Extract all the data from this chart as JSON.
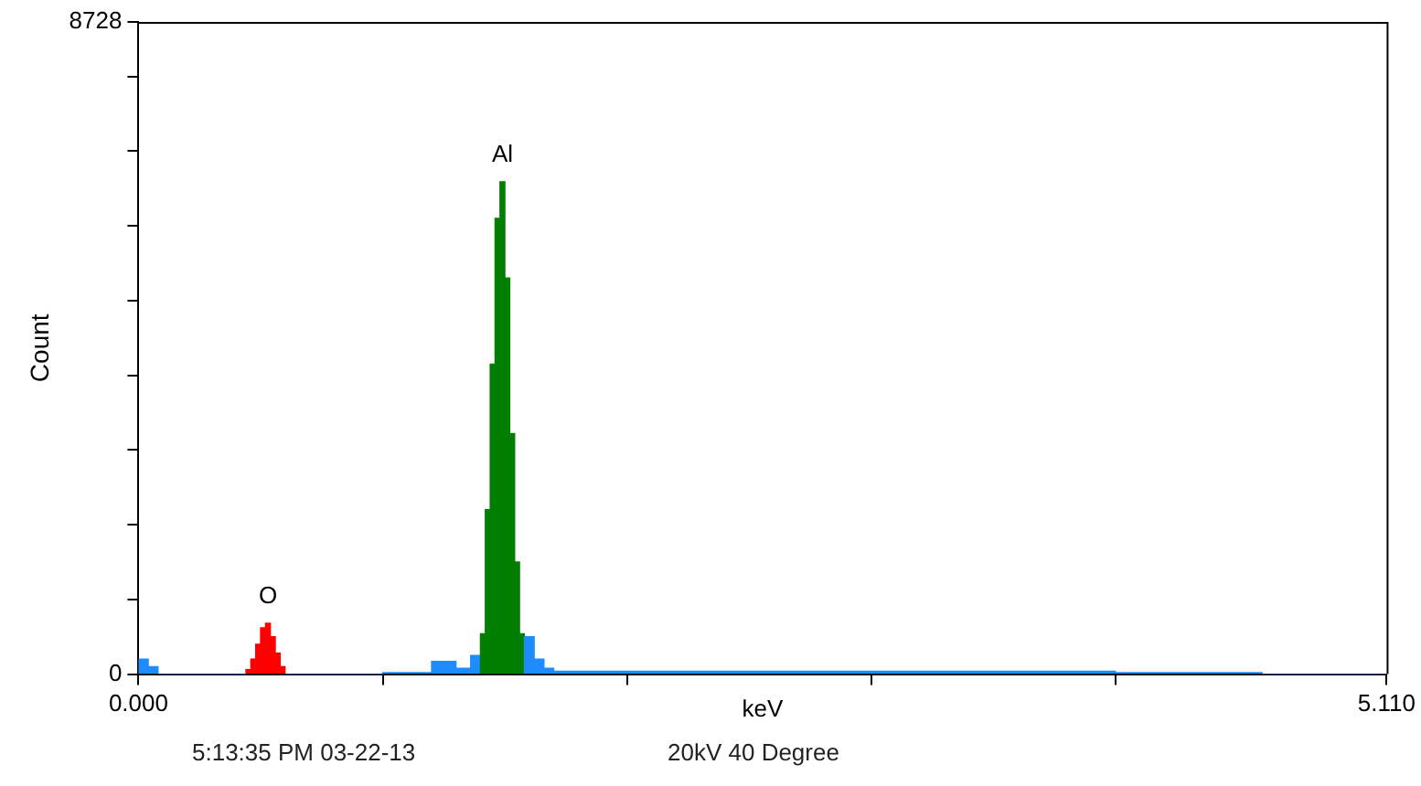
{
  "chart_data": {
    "type": "histogram",
    "xlabel": "keV",
    "ylabel": "Count",
    "bins": [
      0,
      0.04,
      0.08,
      0.44,
      0.46,
      0.48,
      0.5,
      0.52,
      0.54,
      0.56,
      0.58,
      0.6,
      1.0,
      1.2,
      1.3,
      1.36,
      1.4,
      1.42,
      1.44,
      1.46,
      1.48,
      1.5,
      1.52,
      1.54,
      1.56,
      1.58,
      1.62,
      1.66,
      1.7,
      4.0,
      4.6,
      5.11
    ],
    "values": [
      200,
      100,
      0,
      60,
      200,
      400,
      620,
      680,
      500,
      280,
      100,
      0,
      20,
      170,
      80,
      250,
      540,
      2200,
      4150,
      6100,
      6590,
      5300,
      3220,
      1500,
      540,
      500,
      200,
      80,
      40,
      20,
      0
    ],
    "colors": [
      "#1e8cff",
      "#1e8cff",
      "#1e8cff",
      "#ff0000",
      "#ff0000",
      "#ff0000",
      "#ff0000",
      "#ff0000",
      "#ff0000",
      "#ff0000",
      "#ff0000",
      "#1e8cff",
      "#1e8cff",
      "#1e8cff",
      "#1e8cff",
      "#1e8cff",
      "#007f00",
      "#007f00",
      "#007f00",
      "#007f00",
      "#007f00",
      "#007f00",
      "#007f00",
      "#007f00",
      "#007f00",
      "#1e8cff",
      "#1e8cff",
      "#1e8cff",
      "#1e8cff",
      "#1e8cff",
      "#1e8cff"
    ],
    "xlim": [
      0,
      5.11
    ],
    "xticks": [
      {
        "value": 0,
        "label": "0.000"
      },
      {
        "value": 1,
        "label": null
      },
      {
        "value": 2,
        "label": null
      },
      {
        "value": 3,
        "label": null
      },
      {
        "value": 4,
        "label": null
      },
      {
        "value": 5.11,
        "label": "5.110"
      }
    ],
    "ylim": [
      0,
      8728
    ],
    "yticks": [
      0,
      {
        "value": 1000,
        "label": null
      },
      {
        "value": 2000,
        "label": null
      },
      {
        "value": 3000,
        "label": null
      },
      {
        "value": 4000,
        "label": null
      },
      {
        "value": 5000,
        "label": null
      },
      {
        "value": 6000,
        "label": null
      },
      {
        "value": 7000,
        "label": null
      },
      {
        "value": 8000,
        "label": null
      },
      8728
    ],
    "grid": false,
    "legend": false,
    "annotations": [
      {
        "text": "O",
        "x": 0.53,
        "y": 680
      },
      {
        "text": "Al",
        "x": 1.49,
        "y": 6590
      },
      "5:13:35 PM  03-22-13",
      "20kV 40 Degree"
    ]
  }
}
